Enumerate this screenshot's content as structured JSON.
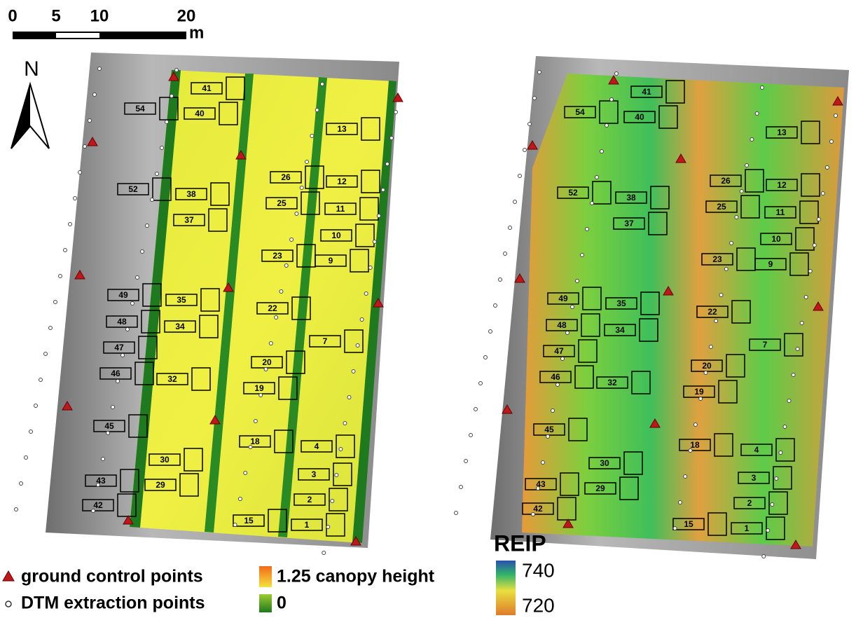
{
  "scale_bar": {
    "ticks": [
      0,
      5,
      10,
      20
    ],
    "unit": "m"
  },
  "north_arrow": "N",
  "plots": [
    "41",
    "40",
    "54",
    "13",
    "26",
    "52",
    "38",
    "12",
    "25",
    "11",
    "37",
    "10",
    "23",
    "9",
    "49",
    "35",
    "22",
    "48",
    "34",
    "7",
    "47",
    "20",
    "46",
    "32",
    "19",
    "45",
    "18",
    "4",
    "30",
    "3",
    "43",
    "29",
    "2",
    "42",
    "15",
    "1"
  ],
  "legend": {
    "gcp": "ground control points",
    "dtm": "DTM extraction points",
    "canopy_high": "1.25 canopy height",
    "canopy_low": "0"
  },
  "reip_legend": {
    "title": "REIP",
    "high": "740",
    "low": "720"
  }
}
